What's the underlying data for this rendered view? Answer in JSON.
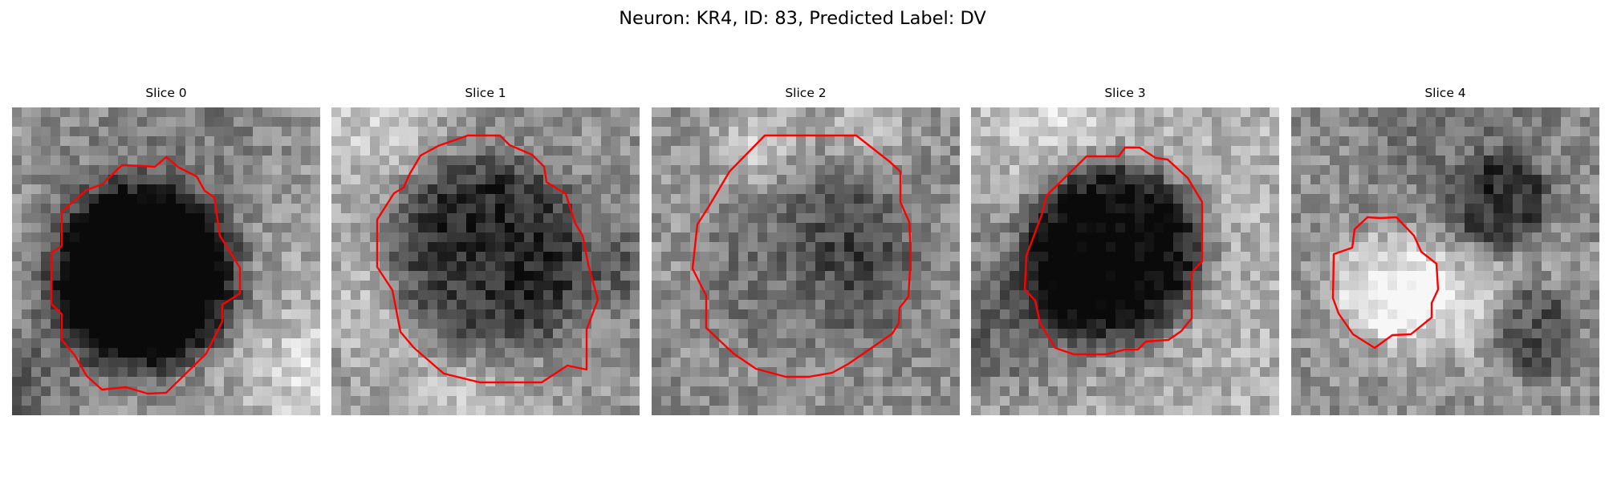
{
  "figure": {
    "title": "Neuron: KR4, ID: 83, Predicted Label: DV"
  },
  "contour_color": "#ff0000",
  "colormap": "grayscale",
  "panels": [
    {
      "title": "Slice 0"
    },
    {
      "title": "Slice 1"
    },
    {
      "title": "Slice 2"
    },
    {
      "title": "Slice 3"
    },
    {
      "title": "Slice 4"
    }
  ]
}
